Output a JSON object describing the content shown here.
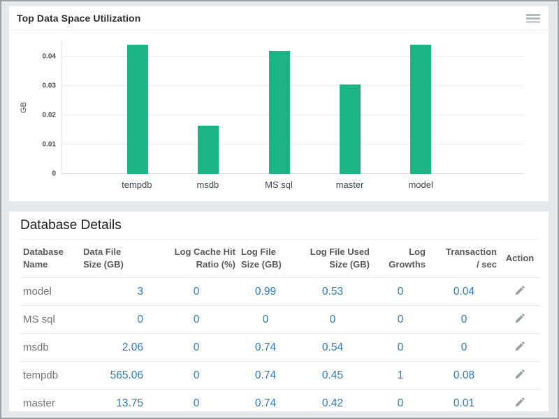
{
  "chart_panel": {
    "title": "Top Data Space Utilization"
  },
  "chart_data": {
    "type": "bar",
    "title": "Top Data Space Utilization",
    "categories": [
      "tempdb",
      "msdb",
      "MS sql",
      "master",
      "model"
    ],
    "values": [
      0.044,
      0.0165,
      0.042,
      0.0305,
      0.044
    ],
    "xlabel": "",
    "ylabel": "GB",
    "yticks": [
      0,
      0.01,
      0.02,
      0.03,
      0.04
    ],
    "ylim": [
      0,
      0.0455
    ],
    "bar_color": "#1cb485",
    "grid": true,
    "legend_position": "none"
  },
  "table": {
    "title": "Database Details",
    "columns": [
      {
        "lines": [
          "Database",
          "Name"
        ]
      },
      {
        "lines": [
          "Data File",
          "Size (GB)"
        ]
      },
      {
        "lines": [
          "Log Cache Hit",
          "Ratio (%)"
        ]
      },
      {
        "lines": [
          "Log File",
          "Size (GB)"
        ]
      },
      {
        "lines": [
          "Log File Used",
          "Size (GB)"
        ]
      },
      {
        "lines": [
          "Log",
          "Growths"
        ]
      },
      {
        "lines": [
          "Transaction",
          "/ sec"
        ]
      },
      {
        "lines": [
          "Action"
        ]
      }
    ],
    "rows": [
      [
        "model",
        "3",
        "0",
        "0.99",
        "0.53",
        "0",
        "0.04"
      ],
      [
        "MS sql",
        "0",
        "0",
        "0",
        "0",
        "0",
        "0"
      ],
      [
        "msdb",
        "2.06",
        "0",
        "0.74",
        "0.54",
        "0",
        "0"
      ],
      [
        "tempdb",
        "565.06",
        "0",
        "0.74",
        "0.45",
        "1",
        "0.08"
      ],
      [
        "master",
        "13.75",
        "0",
        "0.74",
        "0.42",
        "0",
        "0.01"
      ]
    ],
    "action_icon": "pencil-edit-icon"
  },
  "colors": {
    "bar_green": "#1cb485",
    "value_link_blue": "#2e79ba",
    "page_background": "#e6e9ec"
  }
}
